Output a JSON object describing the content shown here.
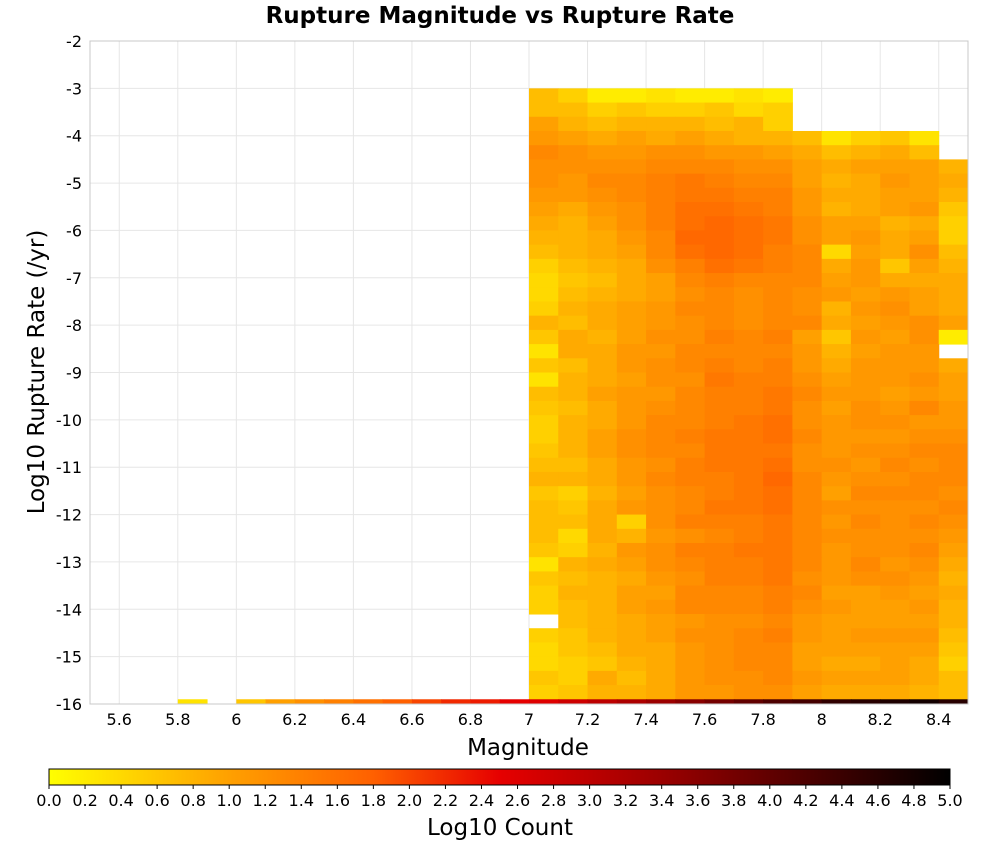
{
  "chart_data": {
    "type": "heatmap",
    "title": "Rupture Magnitude vs Rupture Rate",
    "xlabel": "Magnitude",
    "ylabel": "Log10 Rupture Rate (/yr)",
    "xlim": [
      5.5,
      8.5
    ],
    "ylim": [
      -16,
      -2
    ],
    "x_ticks": [
      "5.6",
      "5.8",
      "6",
      "6.2",
      "6.4",
      "6.6",
      "6.8",
      "7",
      "7.2",
      "7.4",
      "7.6",
      "7.8",
      "8",
      "8.2",
      "8.4"
    ],
    "y_ticks": [
      "-2",
      "-3",
      "-4",
      "-5",
      "-6",
      "-7",
      "-8",
      "-9",
      "-10",
      "-11",
      "-12",
      "-13",
      "-14",
      "-15",
      "-16"
    ],
    "grid": true,
    "x_bin_width": 0.1,
    "y_bin_width": 0.3,
    "x_bins": [
      7.05,
      7.15,
      7.25,
      7.35,
      7.45,
      7.55,
      7.65,
      7.75,
      7.85,
      7.95,
      8.05,
      8.15,
      8.25,
      8.35,
      8.45
    ],
    "y_bins": [
      -3.15,
      -3.45,
      -3.75,
      -4.05,
      -4.35,
      -4.65,
      -4.95,
      -5.25,
      -5.55,
      -5.85,
      -6.15,
      -6.45,
      -6.75,
      -7.05,
      -7.35,
      -7.65,
      -7.95,
      -8.25,
      -8.55,
      -8.85,
      -9.15,
      -9.45,
      -9.75,
      -10.05,
      -10.35,
      -10.65,
      -10.95,
      -11.25,
      -11.55,
      -11.85,
      -12.15,
      -12.45,
      -12.75,
      -13.05,
      -13.35,
      -13.65,
      -13.95,
      -14.25,
      -14.55,
      -14.85,
      -15.15,
      -15.45,
      -15.75
    ],
    "values": [
      [
        0.7,
        0.5,
        0.2,
        0.2,
        0.3,
        0.2,
        0.2,
        0.3,
        0.2,
        null,
        null,
        null,
        null,
        null,
        null
      ],
      [
        0.7,
        0.7,
        0.5,
        0.6,
        0.5,
        0.5,
        0.6,
        0.4,
        0.5,
        null,
        null,
        null,
        null,
        null,
        null
      ],
      [
        1.0,
        0.8,
        0.7,
        0.8,
        0.8,
        0.8,
        0.7,
        0.8,
        0.5,
        null,
        null,
        null,
        null,
        null,
        null
      ],
      [
        1.1,
        1.0,
        0.9,
        1.0,
        0.9,
        1.0,
        0.9,
        0.8,
        0.8,
        0.7,
        0.3,
        0.5,
        0.6,
        0.3,
        null
      ],
      [
        1.3,
        1.2,
        1.1,
        1.1,
        1.2,
        1.2,
        1.1,
        1.1,
        1.0,
        0.9,
        0.7,
        0.8,
        0.9,
        0.7,
        null
      ],
      [
        1.2,
        1.2,
        1.2,
        1.2,
        1.3,
        1.3,
        1.3,
        1.2,
        1.2,
        1.0,
        0.9,
        1.0,
        1.0,
        1.0,
        0.8
      ],
      [
        1.2,
        1.1,
        1.3,
        1.3,
        1.4,
        1.5,
        1.4,
        1.3,
        1.3,
        1.0,
        0.8,
        0.9,
        1.1,
        1.0,
        0.9
      ],
      [
        1.1,
        1.1,
        1.2,
        1.3,
        1.4,
        1.5,
        1.5,
        1.4,
        1.4,
        1.1,
        0.9,
        0.9,
        1.0,
        1.0,
        0.8
      ],
      [
        1.0,
        0.9,
        1.1,
        1.2,
        1.4,
        1.6,
        1.6,
        1.5,
        1.4,
        1.1,
        0.8,
        0.9,
        1.0,
        1.1,
        0.6
      ],
      [
        0.9,
        0.8,
        1.0,
        1.2,
        1.4,
        1.6,
        1.7,
        1.6,
        1.5,
        1.2,
        1.0,
        1.0,
        0.8,
        0.9,
        0.5
      ],
      [
        0.8,
        0.8,
        0.9,
        1.1,
        1.3,
        1.7,
        1.7,
        1.6,
        1.5,
        1.2,
        1.0,
        1.1,
        0.9,
        1.0,
        0.5
      ],
      [
        0.7,
        0.8,
        0.9,
        1.0,
        1.3,
        1.6,
        1.7,
        1.6,
        1.4,
        1.3,
        0.4,
        1.0,
        0.9,
        1.2,
        0.7
      ],
      [
        0.5,
        0.7,
        0.8,
        0.9,
        1.2,
        1.4,
        1.6,
        1.5,
        1.4,
        1.3,
        0.9,
        1.1,
        0.6,
        1.0,
        0.8
      ],
      [
        0.4,
        0.6,
        0.7,
        0.9,
        1.0,
        1.3,
        1.4,
        1.3,
        1.3,
        1.3,
        1.0,
        1.1,
        0.9,
        0.9,
        0.9
      ],
      [
        0.4,
        0.7,
        0.8,
        0.9,
        1.0,
        1.2,
        1.3,
        1.2,
        1.3,
        1.2,
        1.1,
        1.0,
        1.1,
        1.0,
        0.9
      ],
      [
        0.5,
        0.8,
        0.9,
        1.0,
        1.1,
        1.3,
        1.3,
        1.2,
        1.3,
        1.2,
        0.8,
        1.1,
        1.2,
        1.0,
        0.9
      ],
      [
        0.8,
        0.7,
        0.9,
        1.0,
        1.1,
        1.2,
        1.3,
        1.2,
        1.3,
        1.3,
        0.9,
        1.0,
        1.1,
        1.2,
        1.0
      ],
      [
        0.6,
        0.9,
        0.8,
        1.0,
        1.2,
        1.2,
        1.4,
        1.3,
        1.4,
        1.0,
        0.6,
        1.1,
        1.0,
        1.2,
        0.2
      ],
      [
        0.3,
        0.9,
        0.9,
        1.1,
        1.1,
        1.3,
        1.3,
        1.3,
        1.3,
        1.1,
        0.8,
        1.0,
        1.1,
        1.1,
        null
      ],
      [
        0.6,
        0.7,
        0.9,
        1.1,
        1.2,
        1.3,
        1.4,
        1.3,
        1.4,
        1.1,
        0.9,
        1.1,
        1.1,
        1.1,
        0.9
      ],
      [
        0.3,
        0.8,
        0.9,
        1.0,
        1.2,
        1.2,
        1.5,
        1.4,
        1.4,
        1.2,
        1.0,
        1.1,
        1.1,
        1.2,
        1.0
      ],
      [
        0.7,
        0.8,
        1.0,
        1.1,
        1.1,
        1.3,
        1.4,
        1.4,
        1.5,
        1.3,
        1.1,
        1.1,
        1.0,
        1.1,
        1.0
      ],
      [
        0.6,
        0.7,
        0.9,
        1.1,
        1.2,
        1.3,
        1.4,
        1.4,
        1.5,
        1.2,
        1.0,
        1.2,
        1.1,
        1.3,
        1.1
      ],
      [
        0.5,
        0.8,
        0.9,
        1.1,
        1.3,
        1.3,
        1.4,
        1.5,
        1.6,
        1.2,
        1.1,
        1.2,
        1.2,
        1.1,
        1.1
      ],
      [
        0.5,
        0.8,
        1.0,
        1.2,
        1.3,
        1.4,
        1.5,
        1.5,
        1.6,
        1.3,
        1.1,
        1.1,
        1.1,
        1.2,
        1.2
      ],
      [
        0.6,
        0.8,
        1.0,
        1.2,
        1.3,
        1.3,
        1.5,
        1.5,
        1.5,
        1.2,
        1.1,
        1.2,
        1.2,
        1.3,
        1.3
      ],
      [
        0.7,
        0.7,
        0.9,
        1.1,
        1.2,
        1.4,
        1.5,
        1.5,
        1.6,
        1.2,
        1.2,
        1.1,
        1.3,
        1.2,
        1.3
      ],
      [
        0.8,
        0.8,
        0.9,
        1.1,
        1.3,
        1.4,
        1.4,
        1.5,
        1.7,
        1.3,
        1.1,
        1.2,
        1.2,
        1.3,
        1.3
      ],
      [
        0.6,
        0.5,
        0.8,
        1.0,
        1.2,
        1.3,
        1.4,
        1.5,
        1.6,
        1.3,
        1.0,
        1.3,
        1.3,
        1.3,
        1.2
      ],
      [
        0.7,
        0.6,
        0.9,
        1.1,
        1.2,
        1.3,
        1.5,
        1.5,
        1.6,
        1.3,
        1.2,
        1.2,
        1.2,
        1.2,
        1.3
      ],
      [
        0.7,
        0.7,
        0.9,
        0.5,
        1.2,
        1.4,
        1.4,
        1.4,
        1.5,
        1.3,
        1.1,
        1.3,
        1.2,
        1.3,
        1.2
      ],
      [
        0.7,
        0.4,
        0.9,
        0.8,
        1.1,
        1.2,
        1.3,
        1.4,
        1.5,
        1.3,
        1.2,
        1.2,
        1.2,
        1.2,
        1.1
      ],
      [
        0.6,
        0.5,
        0.8,
        1.1,
        1.2,
        1.4,
        1.4,
        1.5,
        1.5,
        1.3,
        1.1,
        1.2,
        1.2,
        1.3,
        1.0
      ],
      [
        0.3,
        0.8,
        0.9,
        1.0,
        1.2,
        1.3,
        1.4,
        1.4,
        1.5,
        1.3,
        1.1,
        1.3,
        1.1,
        1.2,
        0.9
      ],
      [
        0.6,
        0.7,
        0.8,
        0.9,
        1.1,
        1.2,
        1.4,
        1.4,
        1.5,
        1.2,
        1.1,
        1.2,
        1.2,
        1.1,
        0.8
      ],
      [
        0.5,
        0.8,
        0.8,
        1.0,
        1.0,
        1.3,
        1.3,
        1.3,
        1.4,
        1.3,
        1.0,
        1.0,
        1.1,
        1.0,
        0.9
      ],
      [
        0.5,
        0.7,
        0.8,
        1.0,
        1.1,
        1.3,
        1.3,
        1.3,
        1.4,
        1.2,
        1.1,
        1.0,
        1.0,
        1.1,
        0.8
      ],
      [
        null,
        0.7,
        0.8,
        0.9,
        1.0,
        1.1,
        1.2,
        1.2,
        1.3,
        1.1,
        1.0,
        1.0,
        1.0,
        1.0,
        0.8
      ],
      [
        0.5,
        0.6,
        0.8,
        0.9,
        1.0,
        1.2,
        1.2,
        1.3,
        1.4,
        1.1,
        1.0,
        1.1,
        1.1,
        1.1,
        0.7
      ],
      [
        0.4,
        0.6,
        0.7,
        0.9,
        0.9,
        1.1,
        1.2,
        1.3,
        1.3,
        1.0,
        1.0,
        1.0,
        1.0,
        1.0,
        0.6
      ],
      [
        0.4,
        0.5,
        0.6,
        0.8,
        0.9,
        1.1,
        1.2,
        1.3,
        1.3,
        1.0,
        0.9,
        0.9,
        1.0,
        0.9,
        0.5
      ],
      [
        0.6,
        0.5,
        0.9,
        0.7,
        0.9,
        1.1,
        1.2,
        1.2,
        1.3,
        1.1,
        1.0,
        1.0,
        1.0,
        0.9,
        0.7
      ],
      [
        0.5,
        0.6,
        0.8,
        0.8,
        0.9,
        1.1,
        1.1,
        1.2,
        1.2,
        1.0,
        0.9,
        0.9,
        0.9,
        0.8,
        0.7
      ]
    ],
    "bottom_row": {
      "y": -15.95,
      "x_bins": [
        5.85,
        6.05,
        6.15,
        6.25,
        6.35,
        6.45,
        6.55,
        6.65,
        6.75,
        6.85,
        6.95,
        7.05,
        7.15,
        7.25,
        7.35,
        7.45,
        7.55,
        7.65,
        7.75,
        7.85,
        7.95,
        8.05,
        8.15,
        8.25,
        8.35,
        8.45
      ],
      "values": [
        0.3,
        0.6,
        1.0,
        1.2,
        1.4,
        1.6,
        1.8,
        2.0,
        2.2,
        2.3,
        2.5,
        2.6,
        2.8,
        3.0,
        3.2,
        3.4,
        3.6,
        3.8,
        4.0,
        4.2,
        4.3,
        4.5,
        4.6,
        4.7,
        4.8,
        4.6
      ]
    },
    "colorbar": {
      "label": "Log10 Count",
      "range": [
        0.0,
        5.0
      ],
      "ticks": [
        "0.0",
        "0.2",
        "0.4",
        "0.6",
        "0.8",
        "1.0",
        "1.2",
        "1.4",
        "1.6",
        "1.8",
        "2.0",
        "2.2",
        "2.4",
        "2.6",
        "2.8",
        "3.0",
        "3.2",
        "3.4",
        "3.6",
        "3.8",
        "4.0",
        "4.2",
        "4.4",
        "4.6",
        "4.8",
        "5.0"
      ],
      "colors": [
        "#ffff00",
        "#ffa000",
        "#ff6000",
        "#e60000",
        "#9b0000",
        "#000000"
      ]
    }
  }
}
